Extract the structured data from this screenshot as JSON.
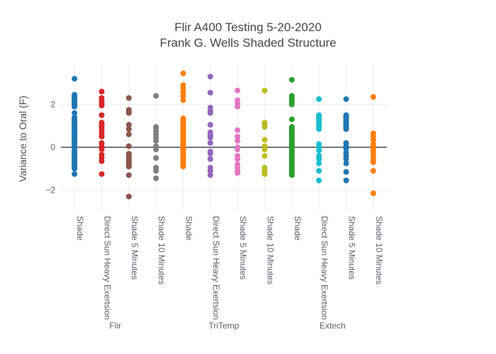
{
  "title": {
    "line1": "Flir A400 Testing 5-20-2020",
    "line2": "Frank G. Wells Shaded Structure"
  },
  "y_axis": {
    "title": "Variance to Oral (F)",
    "tick_labels": [
      "2",
      "0",
      "−2"
    ],
    "tick_values": [
      2,
      0,
      -2
    ]
  },
  "x_axis": {
    "groups": [
      "Flir",
      "TriTemp",
      "Extech"
    ]
  },
  "chart_data": {
    "type": "scatter",
    "subtype": "strip-plot",
    "title": "Flir A400 Testing 5-20-2020",
    "subtitle": "Frank G. Wells Shaded Structure",
    "xlabel": "",
    "ylabel": "Variance to Oral (F)",
    "ylim": [
      -3.0,
      3.9
    ],
    "yticks": [
      2,
      0,
      -2
    ],
    "grid": true,
    "legend": false,
    "zeroline": true,
    "marker_px": 8,
    "groups": [
      "Flir",
      "TriTemp",
      "Extech"
    ],
    "series": [
      {
        "group": "Flir",
        "category": "Shade",
        "color": "#1f77b4",
        "values": [
          3.2,
          2.45,
          2.4,
          2.35,
          2.3,
          2.25,
          2.2,
          2.15,
          2.1,
          2.05,
          2.0,
          1.95,
          1.9,
          1.6,
          1.4,
          1.35,
          1.3,
          1.25,
          1.2,
          1.15,
          1.1,
          1.05,
          1.0,
          0.95,
          0.9,
          0.85,
          0.8,
          0.75,
          0.7,
          0.65,
          0.6,
          0.55,
          0.5,
          0.45,
          0.4,
          0.35,
          0.3,
          0.25,
          0.2,
          0.15,
          0.1,
          0.05,
          -0.1,
          -0.15,
          -0.2,
          -0.25,
          -0.3,
          -0.35,
          -0.4,
          -0.45,
          -0.5,
          -0.55,
          -0.6,
          -0.65,
          -0.7,
          -0.75,
          -0.8,
          -0.85,
          -0.9,
          -0.95,
          -1.0,
          -1.25
        ]
      },
      {
        "group": "Flir",
        "category": "Direct Sun Heavy Exertsion",
        "color": "#d62728",
        "values": [
          2.6,
          2.3,
          2.15,
          2.05,
          1.95,
          1.5,
          1.15,
          1.1,
          1.0,
          0.95,
          0.8,
          0.65,
          0.5,
          0.2,
          0.05,
          -0.05,
          -0.1,
          -0.35,
          -0.5,
          -0.65,
          -1.25
        ]
      },
      {
        "group": "Flir",
        "category": "Shade 5 Minutes",
        "color": "#8c564b",
        "values": [
          2.3,
          1.75,
          1.65,
          1.6,
          1.05,
          0.85,
          0.6,
          0.05,
          -0.3,
          -0.35,
          -0.4,
          -0.45,
          -0.5,
          -0.55,
          -0.6,
          -0.65,
          -0.7,
          -0.75,
          -0.8,
          -0.85,
          -0.9,
          -1.3,
          -2.3
        ]
      },
      {
        "group": "Flir",
        "category": "Shade 10 Minutes",
        "color": "#7f7f7f",
        "values": [
          2.4,
          0.95,
          0.9,
          0.75,
          0.6,
          0.45,
          0.3,
          0.05,
          -0.1,
          -0.5,
          -0.95,
          -1.1,
          -1.45
        ]
      },
      {
        "group": "TriTemp",
        "category": "Shade",
        "color": "#ff7f0e",
        "values": [
          3.45,
          2.9,
          2.75,
          2.6,
          2.4,
          2.2,
          1.35,
          1.3,
          1.25,
          1.2,
          1.15,
          1.1,
          1.05,
          1.0,
          0.95,
          0.9,
          0.85,
          0.8,
          0.75,
          0.7,
          0.65,
          0.6,
          0.55,
          0.5,
          0.45,
          0.4,
          0.35,
          0.3,
          0.25,
          0.2,
          0.15,
          0.1,
          0.05,
          0.0,
          -0.05,
          -0.1,
          -0.15,
          -0.2,
          -0.25,
          -0.3,
          -0.35,
          -0.4,
          -0.45,
          -0.5,
          -0.55,
          -0.6,
          -0.65,
          -0.7,
          -0.75,
          -0.8,
          -0.85,
          -0.9
        ]
      },
      {
        "group": "TriTemp",
        "category": "Direct Sun Heavy Exertsion",
        "color": "#9467bd",
        "values": [
          3.3,
          2.55,
          1.85,
          1.7,
          1.6,
          1.05,
          0.7,
          0.55,
          0.45,
          0.2,
          -0.2,
          -0.3,
          -0.55,
          -0.95,
          -1.1,
          -1.3
        ]
      },
      {
        "group": "TriTemp",
        "category": "Shade 5 Minutes",
        "color": "#e377c2",
        "values": [
          2.65,
          2.2,
          2.05,
          1.9,
          0.8,
          0.5,
          0.3,
          0.0,
          -0.1,
          -0.4,
          -0.55,
          -0.8,
          -0.95,
          -1.1,
          -1.2
        ]
      },
      {
        "group": "TriTemp",
        "category": "Shade 10 Minutes",
        "color": "#bcbd22",
        "values": [
          2.65,
          1.15,
          1.1,
          1.0,
          0.95,
          0.35,
          0.05,
          -0.05,
          -0.1,
          -0.4,
          -0.95,
          -1.05,
          -1.15,
          -1.25
        ]
      },
      {
        "group": "Extech",
        "category": "Shade",
        "color": "#2ca02c",
        "values": [
          3.15,
          2.4,
          2.3,
          2.2,
          2.1,
          2.0,
          1.3,
          0.95,
          0.9,
          0.85,
          0.8,
          0.75,
          0.7,
          0.65,
          0.6,
          0.55,
          0.5,
          0.45,
          0.4,
          0.35,
          0.3,
          0.25,
          0.2,
          0.15,
          0.1,
          0.05,
          0.0,
          -0.05,
          -0.1,
          -0.15,
          -0.2,
          -0.25,
          -0.3,
          -0.35,
          -0.4,
          -0.45,
          -0.5,
          -0.55,
          -0.6,
          -0.65,
          -0.7,
          -0.75,
          -0.8,
          -0.85,
          -0.9,
          -0.95,
          -1.0,
          -1.05,
          -1.1,
          -1.15,
          -1.2,
          -1.25,
          -1.3
        ]
      },
      {
        "group": "Extech",
        "category": "Direct Sun Heavy Exertsion",
        "color": "#17becf",
        "values": [
          2.25,
          1.5,
          1.45,
          1.4,
          1.35,
          1.3,
          1.25,
          1.2,
          1.15,
          1.1,
          1.05,
          1.0,
          0.85,
          0.15,
          0.0,
          -0.15,
          -0.4,
          -0.55,
          -0.75,
          -1.1,
          -1.55
        ]
      },
      {
        "group": "Extech",
        "category": "Shade 5 Minutes",
        "color": "#1f77b4",
        "values": [
          2.25,
          1.5,
          1.45,
          1.4,
          1.35,
          1.3,
          1.25,
          1.2,
          1.15,
          1.1,
          1.05,
          1.0,
          0.95,
          0.9,
          0.85,
          0.2,
          0.05,
          -0.05,
          -0.25,
          -0.4,
          -0.55,
          -0.75,
          -1.15,
          -1.55
        ]
      },
      {
        "group": "Extech",
        "category": "Shade 10 Minutes",
        "color": "#ff7f0e",
        "values": [
          2.35,
          0.65,
          0.5,
          0.35,
          0.15,
          0.05,
          -0.05,
          -0.15,
          -0.3,
          -0.45,
          -0.6,
          -0.7,
          -1.1,
          -2.15
        ]
      }
    ]
  },
  "style": {
    "gridline_color": "#ebedef",
    "zeroline_color": "#444b54",
    "text_color": "#5c6068"
  }
}
